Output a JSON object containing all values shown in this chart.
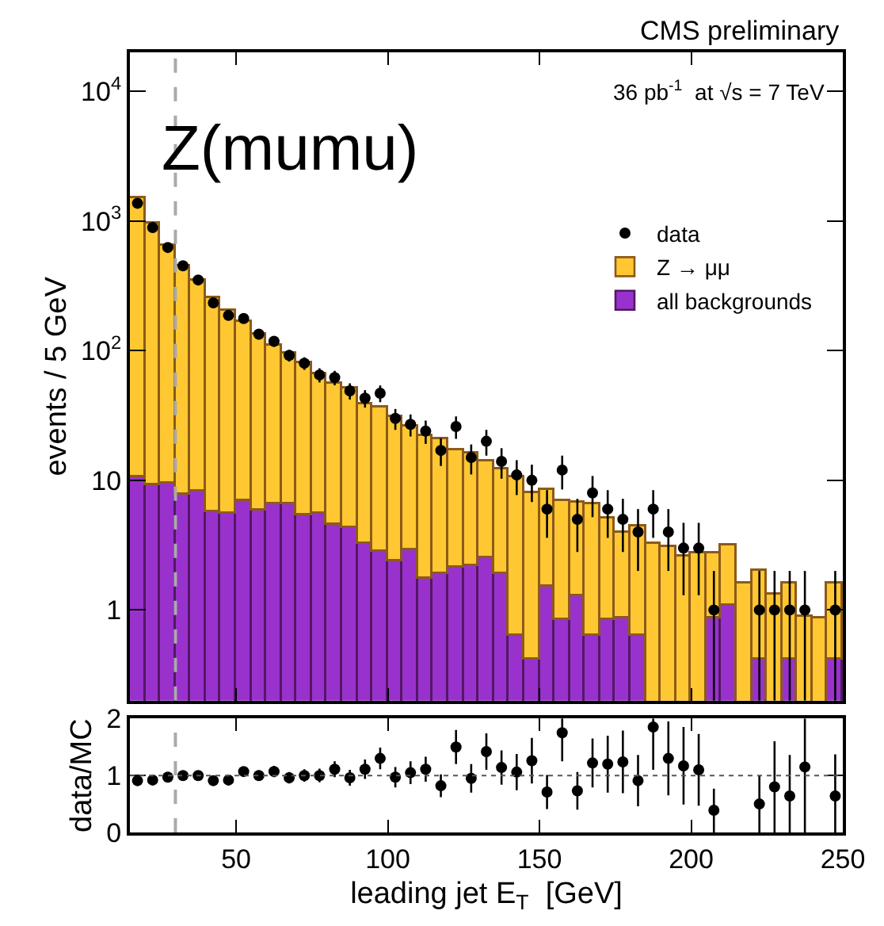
{
  "chart_data": [
    {
      "type": "bar",
      "title": "CMS preliminary",
      "ylabel": "events / 5 GeV",
      "annotations": [
        "Z(mumu)",
        "36 pb$^{-1}$  at √s = 7 TeV"
      ],
      "x": [
        17.5,
        22.5,
        27.5,
        32.5,
        37.5,
        42.5,
        47.5,
        52.5,
        57.5,
        62.5,
        67.5,
        72.5,
        77.5,
        82.5,
        87.5,
        92.5,
        97.5,
        102.5,
        107.5,
        112.5,
        117.5,
        122.5,
        127.5,
        132.5,
        137.5,
        142.5,
        147.5,
        152.5,
        157.5,
        162.5,
        167.5,
        172.5,
        177.5,
        182.5,
        187.5,
        192.5,
        197.5,
        202.5,
        207.5,
        212.5,
        217.5,
        222.5,
        227.5,
        232.5,
        237.5,
        242.5,
        247.5
      ],
      "stacked": true,
      "log": "y",
      "legend": "top right",
      "tick_labels": "y",
      "xlim": [
        15,
        250
      ],
      "xticks": [
        50,
        100,
        150,
        200,
        250
      ],
      "ylim": [
        0.2,
        20000
      ],
      "yticks": [
        1,
        10,
        {
          "value": 100,
          "label": "10$^{2}$"
        },
        {
          "value": 1000,
          "label": "10$^{3}$"
        },
        {
          "value": 10000,
          "label": "10$^{4}$"
        }
      ],
      "ref_lines": [
        {
          "axis": "x",
          "value": 30,
          "color": "#aaaaaa",
          "line_style": "dashed"
        }
      ],
      "series": [
        {
          "name": "all backgrounds",
          "color": "#9932cc",
          "values": [
            10.6,
            9.3,
            9.4,
            7.7,
            8.2,
            5.7,
            5.5,
            6.9,
            5.8,
            6.5,
            6.6,
            5.3,
            5.5,
            4.5,
            4.3,
            3.2,
            2.8,
            2.4,
            2.9,
            1.74,
            1.9,
            2.1,
            2.2,
            2.5,
            1.9,
            0.64,
            0.42,
            1.5,
            0.84,
            1.26,
            0.63,
            0.83,
            0.87,
            0.63,
            null,
            null,
            null,
            null,
            0.85,
            1.08,
            null,
            0.42,
            null,
            0.42,
            null,
            null,
            0.42
          ]
        },
        {
          "name": "Z → μμ",
          "color": "#ffc832",
          "values": [
            1490,
            940,
            635,
            444,
            343,
            251,
            198,
            158,
            128,
            104,
            89,
            75,
            59.5,
            51.5,
            46.7,
            35.8,
            33.2,
            28.6,
            23.1,
            20.3,
            19.1,
            14.9,
            13.8,
            11.5,
            10.4,
            9.8,
            7.5,
            7.0,
            6.1,
            5.5,
            6.0,
            4.2,
            3.1,
            3.8,
            3.2,
            3.1,
            2.6,
            2.7,
            1.9,
            2.1,
            1.6,
            1.6,
            1.3,
            1.2,
            0.89,
            0.85,
            1.2
          ]
        },
        {
          "name": "data",
          "type": "scatter",
          "marker": "circle",
          "color": "#000000",
          "values": [
            1370,
            890,
            625,
            452,
            351,
            234,
            187,
            177,
            134,
            118,
            92,
            80,
            65,
            62,
            49,
            43,
            47,
            30,
            27,
            24,
            17,
            26,
            15,
            20,
            14,
            11,
            10,
            6,
            12,
            5,
            8,
            6,
            5,
            4,
            6,
            4,
            3,
            3,
            1,
            null,
            null,
            1,
            1,
            1,
            1,
            null,
            1
          ],
          "errors": [
            37,
            30,
            25,
            21,
            19,
            15,
            14,
            13,
            12,
            11,
            9.6,
            8.9,
            8.1,
            7.9,
            7,
            6.6,
            6.9,
            5.5,
            5.2,
            4.9,
            4.1,
            5.1,
            3.9,
            4.5,
            3.7,
            3.3,
            3.2,
            2.4,
            3.5,
            2.2,
            2.8,
            2.4,
            2.2,
            2,
            2.4,
            2,
            1.7,
            1.7,
            [
              0.2,
              2
            ],
            null,
            null,
            [
              0.2,
              2
            ],
            [
              0.2,
              2
            ],
            [
              0.2,
              2
            ],
            [
              0.2,
              2
            ],
            null,
            [
              0.2,
              2
            ]
          ]
        }
      ]
    },
    {
      "type": "scatter",
      "xlabel": "leading jet E$_{T}$  [GeV]",
      "ylabel": "data/MC",
      "marker": "circle",
      "xlim": [
        15,
        250
      ],
      "xticks": [
        50,
        100,
        150,
        200,
        250
      ],
      "ylim": [
        0,
        2
      ],
      "yticks": [
        0,
        1,
        2
      ],
      "ref_lines": [
        {
          "axis": "y",
          "value": 1,
          "color": "#555555",
          "line_style": "dotted"
        },
        {
          "axis": "x",
          "value": 30,
          "color": "#aaaaaa",
          "line_style": "dashed"
        }
      ],
      "series": [
        {
          "color": "#000000",
          "x": [
            17.5,
            22.5,
            27.5,
            32.5,
            37.5,
            42.5,
            47.5,
            52.5,
            57.5,
            62.5,
            67.5,
            72.5,
            77.5,
            82.5,
            87.5,
            92.5,
            97.5,
            102.5,
            107.5,
            112.5,
            117.5,
            122.5,
            127.5,
            132.5,
            137.5,
            142.5,
            147.5,
            152.5,
            157.5,
            162.5,
            167.5,
            172.5,
            177.5,
            182.5,
            187.5,
            192.5,
            197.5,
            202.5,
            207.5,
            212.5,
            217.5,
            222.5,
            227.5,
            232.5,
            237.5,
            242.5,
            247.5
          ],
          "values": [
            0.91,
            0.92,
            0.97,
            1.0,
            1.0,
            0.91,
            0.92,
            1.07,
            1.0,
            1.07,
            0.96,
            1.0,
            1.0,
            1.11,
            0.96,
            1.11,
            1.3,
            0.97,
            1.05,
            1.11,
            0.82,
            1.5,
            0.95,
            1.42,
            1.14,
            1.06,
            1.26,
            0.71,
            1.75,
            0.73,
            1.22,
            1.2,
            1.24,
            0.91,
            1.85,
            1.3,
            1.17,
            1.1,
            0.39,
            null,
            null,
            0.5,
            0.8,
            0.64,
            1.15,
            null,
            0.64
          ],
          "errors": [
            0.03,
            0.03,
            0.04,
            0.05,
            0.05,
            0.06,
            0.07,
            0.08,
            0.09,
            0.1,
            0.1,
            0.11,
            0.12,
            0.14,
            0.14,
            0.17,
            0.19,
            0.18,
            0.2,
            0.22,
            0.2,
            0.3,
            0.25,
            0.32,
            0.3,
            0.32,
            0.4,
            0.3,
            0.5,
            0.33,
            0.43,
            0.5,
            0.55,
            0.45,
            [
              1.1,
              2
            ],
            0.65,
            0.68,
            0.63,
            [
              0,
              0.77
            ],
            null,
            null,
            [
              0,
              0.99
            ],
            [
              0,
              1.6
            ],
            [
              0,
              1.36
            ],
            [
              0,
              2
            ],
            null,
            [
              0,
              1.37
            ]
          ]
        }
      ]
    }
  ]
}
